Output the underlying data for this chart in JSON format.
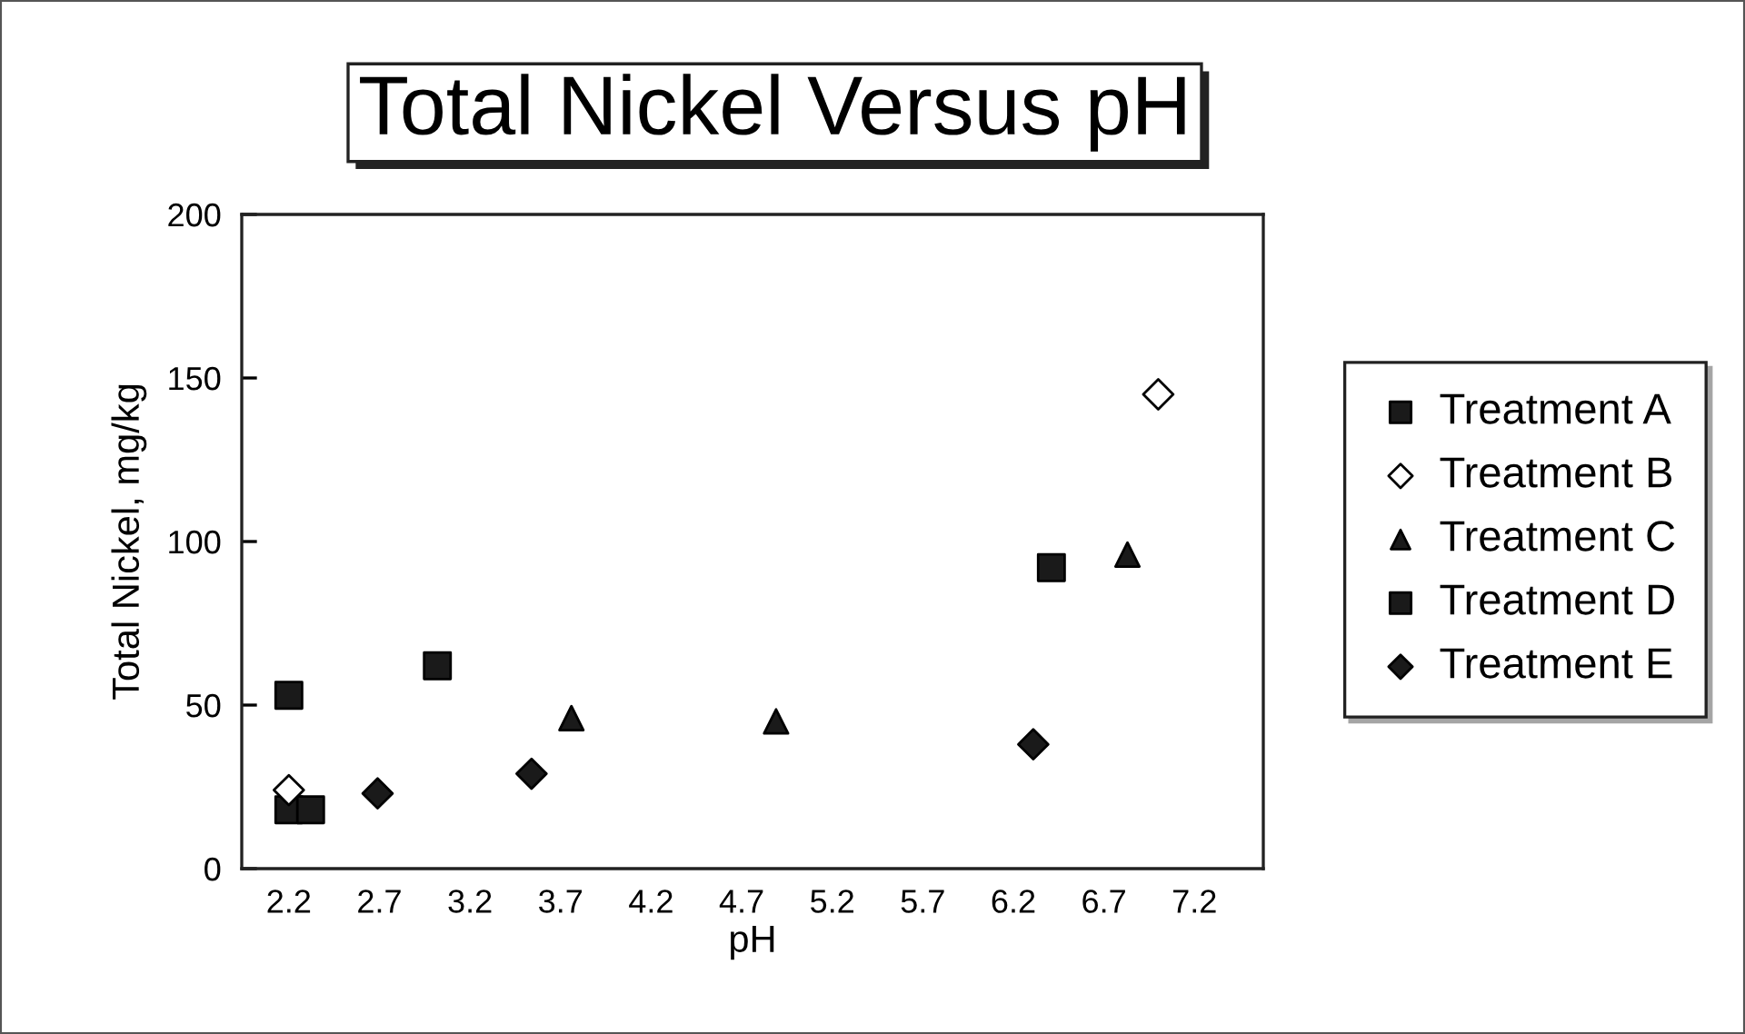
{
  "chart_data": {
    "type": "scatter",
    "title": "Total Nickel Versus pH",
    "xlabel": "pH",
    "ylabel": "Total Nickel, mg/kg",
    "xlim": [
      1.94,
      7.58
    ],
    "ylim": [
      0,
      200
    ],
    "xticks": [
      2.2,
      2.7,
      3.2,
      3.7,
      4.2,
      4.7,
      5.2,
      5.7,
      6.2,
      6.7,
      7.2
    ],
    "yticks": [
      0,
      50,
      100,
      150,
      200
    ],
    "grid": false,
    "legend": "right",
    "series": [
      {
        "name": "Treatment A",
        "color": "#1a1a1a",
        "marker": "square",
        "x": [
          2.2,
          2.32
        ],
        "values": [
          18,
          18
        ]
      },
      {
        "name": "Treatment B",
        "color": "#ffffff",
        "marker": "diamond",
        "x": [
          2.2,
          7.0
        ],
        "values": [
          24,
          145
        ]
      },
      {
        "name": "Treatment C",
        "color": "#1a1a1a",
        "marker": "triangle",
        "x": [
          3.76,
          4.89,
          6.83
        ],
        "values": [
          46,
          45,
          96
        ]
      },
      {
        "name": "Treatment D",
        "color": "#1a1a1a",
        "marker": "square",
        "x": [
          2.2,
          3.02,
          6.41
        ],
        "values": [
          53,
          62,
          92
        ]
      },
      {
        "name": "Treatment E",
        "color": "#1a1a1a",
        "marker": "diamond",
        "x": [
          2.69,
          3.54,
          6.31
        ],
        "values": [
          23,
          29,
          38
        ]
      }
    ]
  }
}
